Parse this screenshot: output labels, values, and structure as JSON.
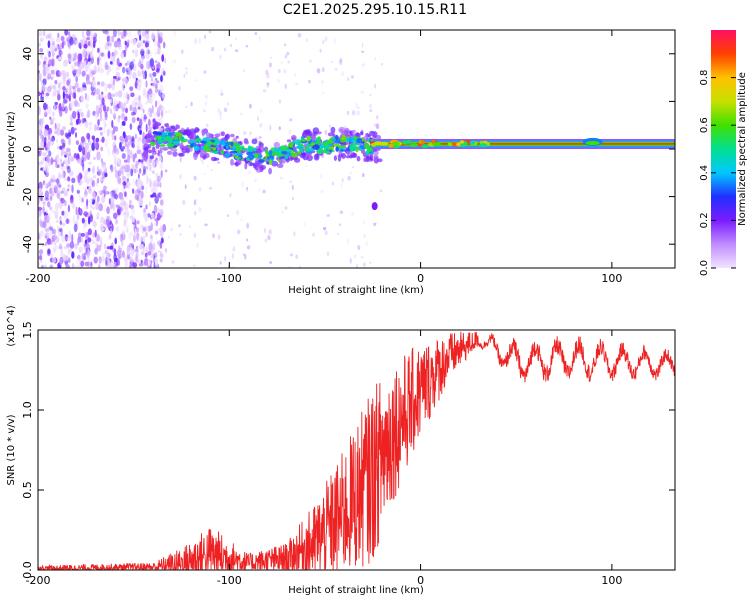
{
  "title": "C2E1.2025.295.10.15.R11",
  "chart_data": [
    {
      "type": "heatmap",
      "name": "spectrogram",
      "xlabel": "Height of straight line (km)",
      "ylabel": "Frequency (Hz)",
      "xlim": [
        -200,
        133
      ],
      "ylim": [
        -50,
        50
      ],
      "xticks": [
        -200,
        -100,
        0,
        100
      ],
      "yticks": [
        -40,
        -20,
        0,
        20,
        40
      ],
      "colorbar": {
        "label": "Normalized spectral amplitude",
        "range": [
          0.0,
          1.0
        ],
        "ticks": [
          0.0,
          0.2,
          0.4,
          0.6,
          0.8
        ],
        "colors": [
          "#f0e4ff",
          "#c08cff",
          "#7a1cff",
          "#2030ff",
          "#00c8ff",
          "#00e090",
          "#40e000",
          "#c8e000",
          "#ffc000",
          "#ff4000",
          "#ff1060"
        ]
      },
      "features": {
        "noise_region_x": [
          -200,
          -140
        ],
        "signal_track": [
          {
            "x": -140,
            "f": 5
          },
          {
            "x": -120,
            "f": 3
          },
          {
            "x": -100,
            "f": 0
          },
          {
            "x": -80,
            "f": -4
          },
          {
            "x": -60,
            "f": 2
          },
          {
            "x": -40,
            "f": 2
          },
          {
            "x": -25,
            "f": 1
          },
          {
            "x": 0,
            "f": 2
          },
          {
            "x": 50,
            "f": 2
          },
          {
            "x": 90,
            "f": 3
          },
          {
            "x": 133,
            "f": 2
          }
        ],
        "isolated_blob": {
          "x": -24,
          "f": -24
        }
      }
    },
    {
      "type": "line",
      "name": "snr",
      "xlabel": "Height of straight line (km)",
      "ylabel": "SNR (10 * v/v)",
      "scale_label": "(x10^4)",
      "xlim": [
        -200,
        133
      ],
      "ylim": [
        0.0,
        1.5
      ],
      "xticks": [
        -200,
        -100,
        0,
        100
      ],
      "yticks": [
        0.0,
        0.5,
        1.0,
        1.5
      ],
      "ytick_labels": [
        "0.0",
        "0.5",
        "1.0",
        "1.5"
      ],
      "color": "#ee2222",
      "envelope": [
        {
          "x": -200,
          "base": 0.01,
          "amp": 0.02
        },
        {
          "x": -140,
          "base": 0.02,
          "amp": 0.03
        },
        {
          "x": -125,
          "base": 0.05,
          "amp": 0.1
        },
        {
          "x": -110,
          "base": 0.12,
          "amp": 0.18
        },
        {
          "x": -90,
          "base": 0.05,
          "amp": 0.06
        },
        {
          "x": -70,
          "base": 0.08,
          "amp": 0.1
        },
        {
          "x": -55,
          "base": 0.2,
          "amp": 0.25
        },
        {
          "x": -40,
          "base": 0.4,
          "amp": 0.4
        },
        {
          "x": -25,
          "base": 0.65,
          "amp": 0.55
        },
        {
          "x": -15,
          "base": 0.9,
          "amp": 0.45
        },
        {
          "x": 0,
          "base": 1.15,
          "amp": 0.3
        },
        {
          "x": 15,
          "base": 1.35,
          "amp": 0.15
        },
        {
          "x": 30,
          "base": 1.45,
          "amp": 0.05
        },
        {
          "x": 50,
          "base": 1.3,
          "amp": 0.15
        },
        {
          "x": 80,
          "base": 1.32,
          "amp": 0.15
        },
        {
          "x": 133,
          "base": 1.28,
          "amp": 0.1
        }
      ]
    }
  ]
}
